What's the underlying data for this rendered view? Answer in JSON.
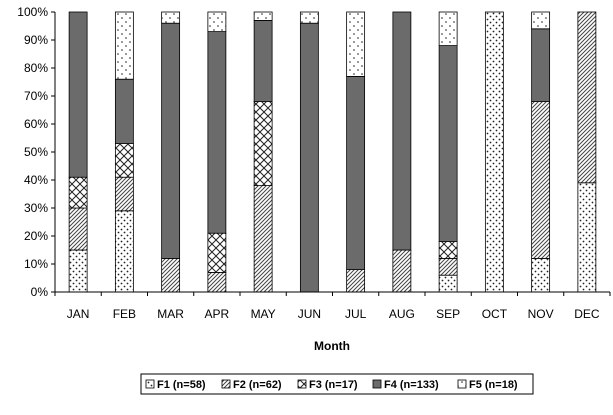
{
  "chart_data": {
    "type": "bar",
    "stacked": true,
    "percent_stacked": true,
    "title": "",
    "xlabel": "Month",
    "ylabel": "",
    "ylim": [
      0,
      100
    ],
    "y_ticks": [
      "0%",
      "10%",
      "20%",
      "30%",
      "40%",
      "50%",
      "60%",
      "70%",
      "80%",
      "90%",
      "100%"
    ],
    "categories": [
      "JAN",
      "FEB",
      "MAR",
      "APR",
      "MAY",
      "JUN",
      "JUL",
      "AUG",
      "SEP",
      "OCT",
      "NOV",
      "DEC"
    ],
    "series": [
      {
        "name": "F1 (n=58)",
        "pattern": "dots",
        "values": [
          15,
          29,
          0,
          0,
          0,
          0,
          0,
          0,
          6,
          100,
          12,
          39
        ]
      },
      {
        "name": "F2 (n=62)",
        "pattern": "diagonal",
        "values": [
          15,
          12,
          12,
          7,
          38,
          0,
          8,
          15,
          6,
          0,
          56,
          61
        ]
      },
      {
        "name": "F3 (n=17)",
        "pattern": "crosshatch",
        "values": [
          11,
          12,
          0,
          14,
          30,
          0,
          0,
          0,
          6,
          0,
          0,
          0
        ]
      },
      {
        "name": "F4 (n=133)",
        "pattern": "solid",
        "values": [
          59,
          23,
          84,
          72,
          29,
          96,
          69,
          85,
          70,
          0,
          26,
          0
        ]
      },
      {
        "name": "F5 (n=18)",
        "pattern": "sparse-dots",
        "values": [
          0,
          24,
          4,
          7,
          3,
          4,
          23,
          0,
          12,
          0,
          6,
          0
        ]
      }
    ],
    "grid": false,
    "legend_position": "bottom"
  },
  "colors": {
    "solid_fill": "#6b6b6b",
    "outline": "#000000",
    "pattern_ink": "#333333",
    "background": "#ffffff"
  }
}
